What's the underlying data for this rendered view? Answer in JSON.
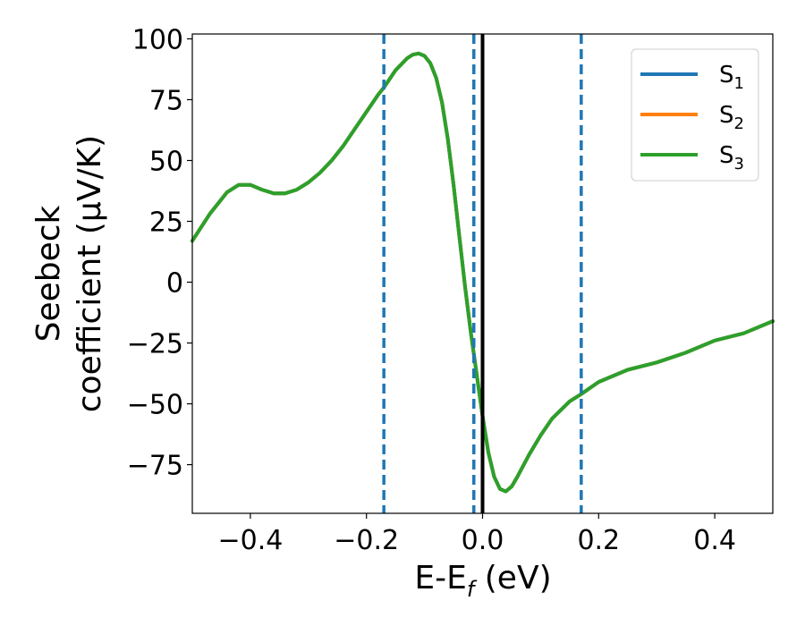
{
  "chart_data": {
    "type": "line",
    "xlabel": {
      "main": "E-E",
      "sub": "f",
      "rest": " (eV)"
    },
    "ylabel": {
      "line1": "Seebeck",
      "line2": "coefficient  (μV/K)"
    },
    "xlim": [
      -0.5,
      0.5
    ],
    "ylim": [
      -95,
      102
    ],
    "xticks": [
      -0.4,
      -0.2,
      0.0,
      0.2,
      0.4
    ],
    "xtick_labels": [
      "−0.4",
      "−0.2",
      "0.0",
      "0.2",
      "0.4"
    ],
    "yticks": [
      100,
      75,
      50,
      25,
      0,
      -25,
      -50,
      -75
    ],
    "ytick_labels": [
      "100",
      "75",
      "50",
      "25",
      "0",
      "−25",
      "−50",
      "−75"
    ],
    "grid": false,
    "legend_position": "top-right",
    "legend": [
      {
        "main": "S",
        "sub": "1",
        "color": "#1f77b4"
      },
      {
        "main": "S",
        "sub": "2",
        "color": "#ff7f0e"
      },
      {
        "main": "S",
        "sub": "3",
        "color": "#2ca02c"
      }
    ],
    "vlines": [
      {
        "x": -0.17,
        "style": "dashed",
        "color": "#1f77b4"
      },
      {
        "x": -0.015,
        "style": "dashed",
        "color": "#1f77b4"
      },
      {
        "x": 0.0,
        "style": "solid",
        "color": "#000000"
      },
      {
        "x": 0.17,
        "style": "dashed",
        "color": "#1f77b4"
      }
    ],
    "x": [
      -0.5,
      -0.47,
      -0.44,
      -0.42,
      -0.4,
      -0.38,
      -0.36,
      -0.34,
      -0.32,
      -0.3,
      -0.28,
      -0.26,
      -0.24,
      -0.22,
      -0.2,
      -0.18,
      -0.17,
      -0.15,
      -0.13,
      -0.12,
      -0.11,
      -0.1,
      -0.09,
      -0.08,
      -0.07,
      -0.06,
      -0.05,
      -0.04,
      -0.03,
      -0.02,
      -0.01,
      0.0,
      0.01,
      0.02,
      0.03,
      0.04,
      0.05,
      0.06,
      0.08,
      0.1,
      0.12,
      0.15,
      0.17,
      0.2,
      0.25,
      0.3,
      0.35,
      0.4,
      0.45,
      0.5
    ],
    "series": [
      {
        "values": [
          17,
          28,
          37,
          40,
          40,
          38,
          36.5,
          36.5,
          38,
          41,
          45,
          50,
          56,
          63,
          70,
          77,
          80,
          87,
          92,
          93.5,
          94,
          93,
          90,
          84,
          74,
          59,
          40,
          19,
          -2,
          -21,
          -38,
          -55,
          -70,
          -80,
          -85,
          -86,
          -84,
          -80,
          -71,
          -63,
          -56,
          -49,
          -46,
          -41,
          -36,
          -33,
          -29,
          -24,
          -21,
          -16
        ],
        "color": "#1f77b4"
      },
      {
        "values": [
          17,
          28,
          37,
          40,
          40,
          38,
          36.5,
          36.5,
          38,
          41,
          45,
          50,
          56,
          63,
          70,
          77,
          80,
          87,
          92,
          93.5,
          94,
          93,
          90,
          84,
          74,
          59,
          40,
          19,
          -2,
          -21,
          -38,
          -55,
          -70,
          -80,
          -85,
          -86,
          -84,
          -80,
          -71,
          -63,
          -56,
          -49,
          -46,
          -41,
          -36,
          -33,
          -29,
          -24,
          -21,
          -16
        ],
        "color": "#ff7f0e"
      },
      {
        "values": [
          17,
          28,
          37,
          40,
          40,
          38,
          36.5,
          36.5,
          38,
          41,
          45,
          50,
          56,
          63,
          70,
          77,
          80,
          87,
          92,
          93.5,
          94,
          93,
          90,
          84,
          74,
          59,
          40,
          19,
          -2,
          -21,
          -38,
          -55,
          -70,
          -80,
          -85,
          -86,
          -84,
          -80,
          -71,
          -63,
          -56,
          -49,
          -46,
          -41,
          -36,
          -33,
          -29,
          -24,
          -21,
          -16
        ],
        "color": "#2ca02c"
      }
    ]
  }
}
